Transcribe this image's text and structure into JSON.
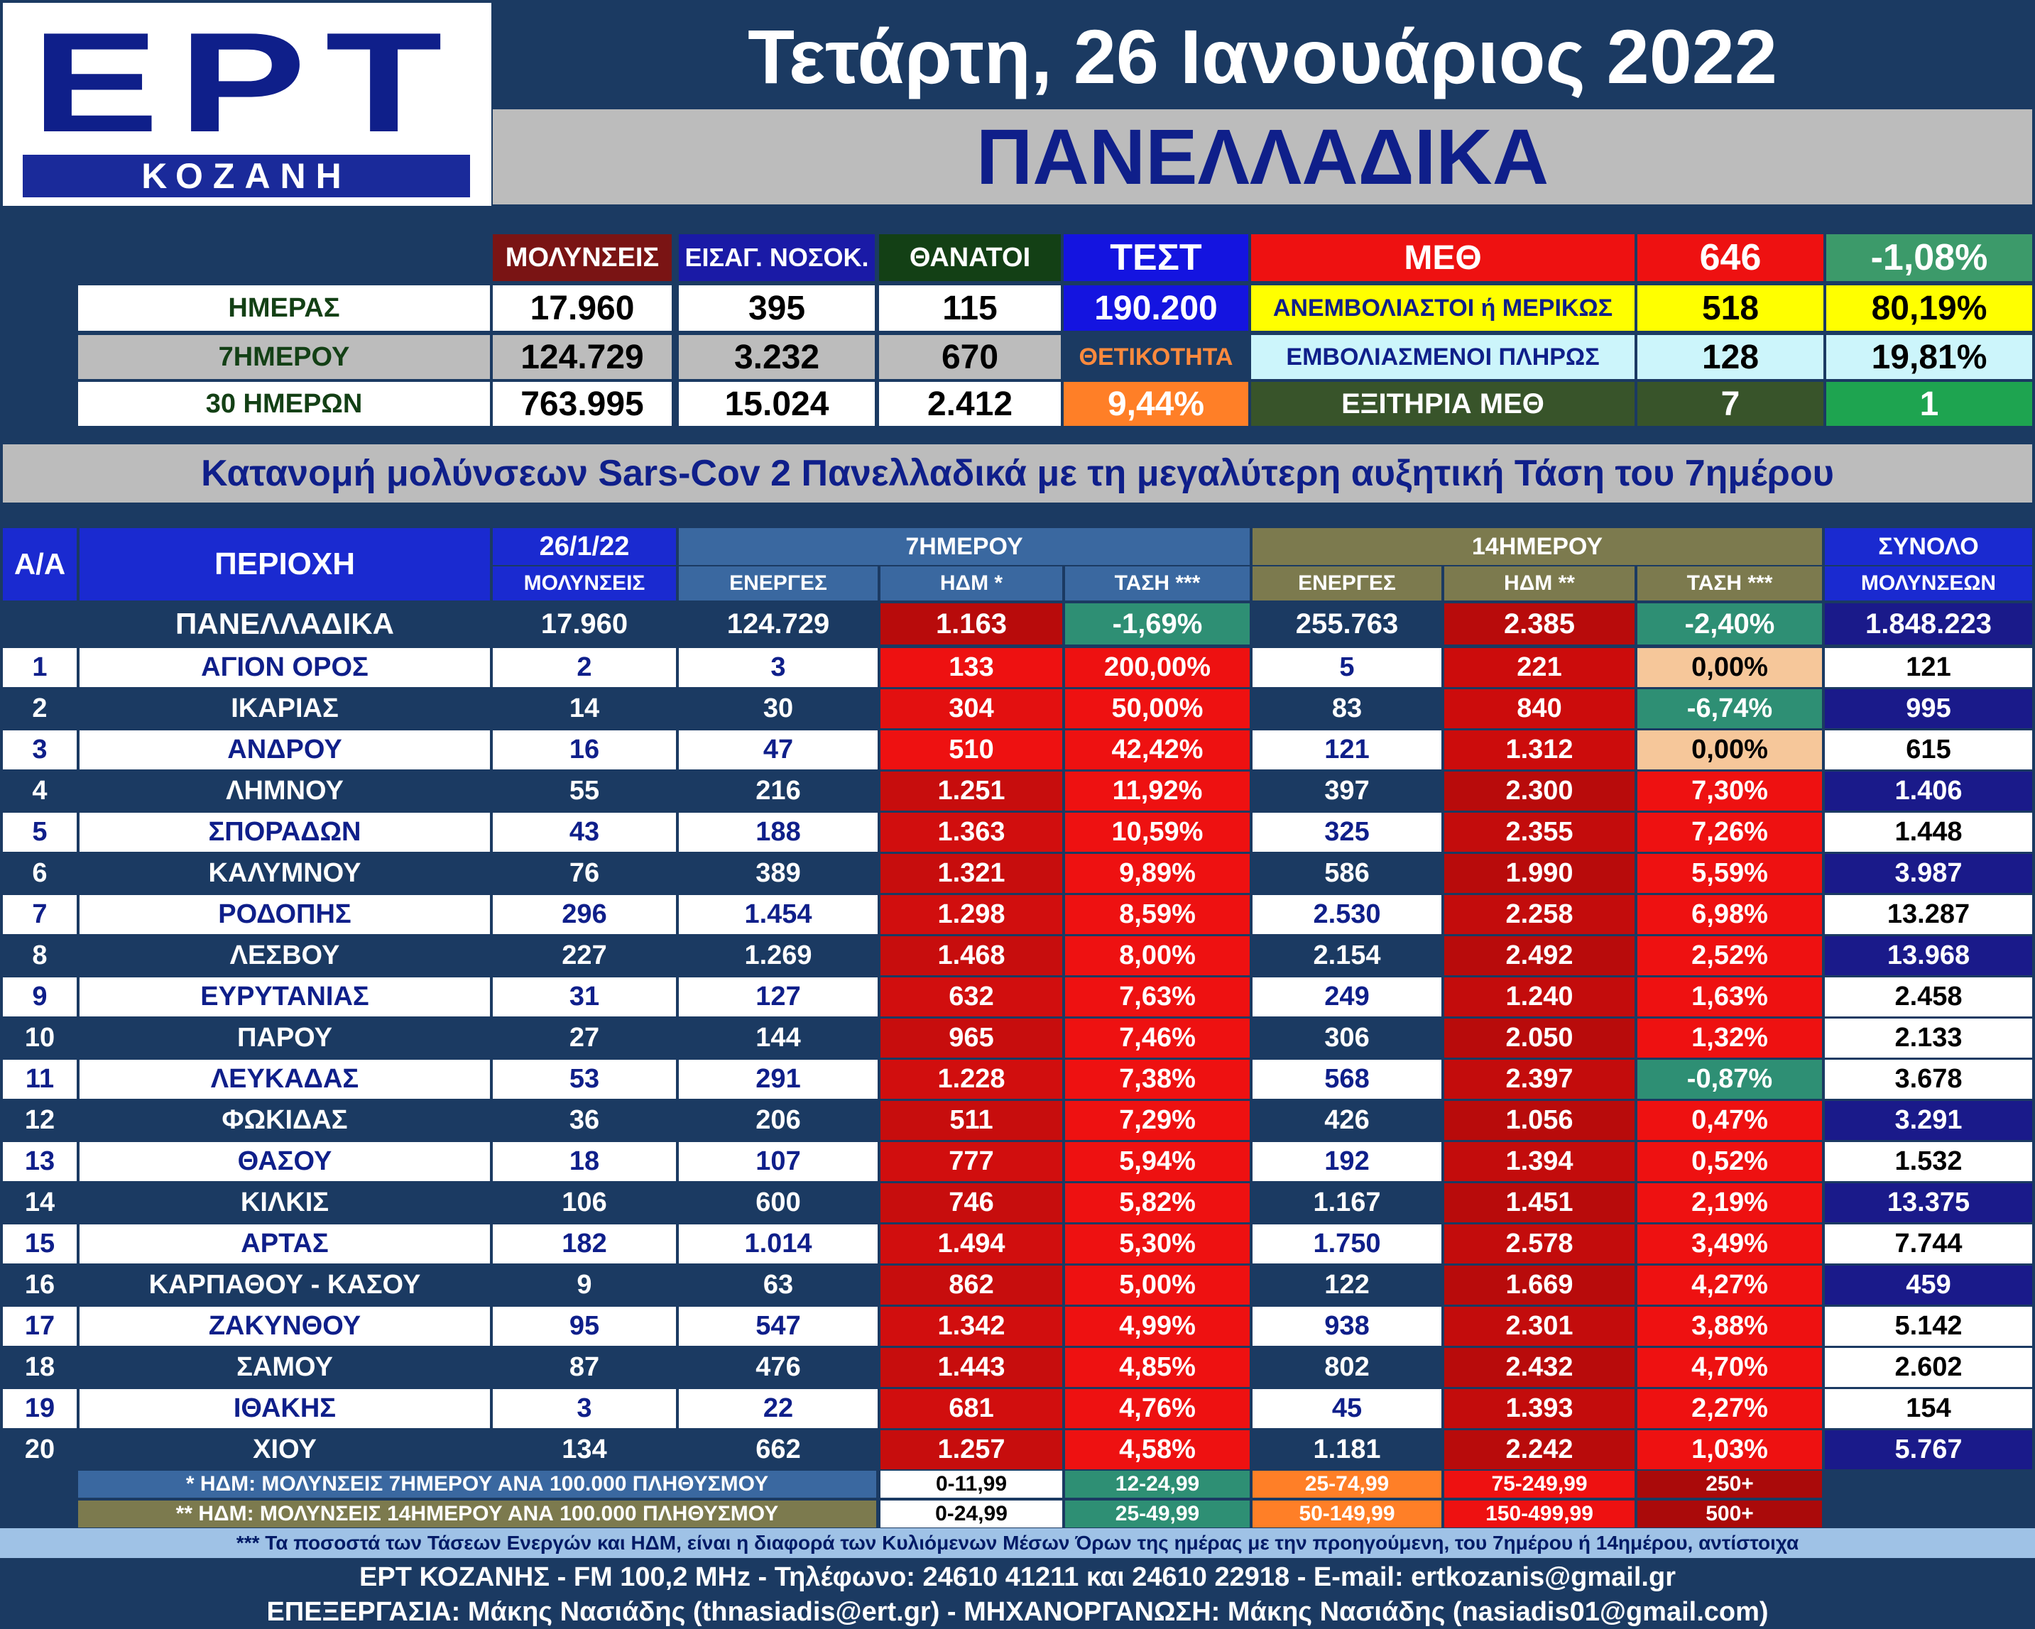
{
  "header": {
    "logo_main": "ΕΡΤ",
    "logo_sub": "ΚΟΖΑΝΗ",
    "date": "Τετάρτη, 26 Ιανουάριος 2022",
    "region": "ΠΑΝΕΛΛΑΔΙΚΑ"
  },
  "summary": {
    "col_headers": [
      "ΜΟΛΥΝΣΕΙΣ",
      "ΕΙΣΑΓ. ΝΟΣΟΚ.",
      "ΘΑΝΑΤΟΙ",
      "ΤΕΣΤ"
    ],
    "rows": [
      {
        "label": "ΗΜΕΡΑΣ",
        "infections": "17.960",
        "admissions": "395",
        "deaths": "115",
        "test": "190.200"
      },
      {
        "label": "7ΗΜΕΡΟΥ",
        "infections": "124.729",
        "admissions": "3.232",
        "deaths": "670",
        "test": "ΘΕΤΙΚΟΤΗΤΑ"
      },
      {
        "label": "30 ΗΜΕΡΩΝ",
        "infections": "763.995",
        "admissions": "15.024",
        "deaths": "2.412",
        "test": "9,44%"
      }
    ],
    "icu": {
      "title": "ΜΕΘ",
      "total": "646",
      "change": "-1,08%",
      "unvaccinated_label": "ΑΝΕΜΒΟΛΙΑΣΤΟΙ ή ΜΕΡΙΚΩΣ",
      "unvaccinated": "518",
      "unvaccinated_pct": "80,19%",
      "vaccinated_label": "ΕΜΒΟΛΙΑΣΜΕΝΟΙ ΠΛΗΡΩΣ",
      "vaccinated": "128",
      "vaccinated_pct": "19,81%",
      "discharged_label": "ΕΞΙΤΗΡΙΑ ΜΕΘ",
      "discharged": "7",
      "discharged_other": "1"
    }
  },
  "section_title": "Κατανομή μολύνσεων Sars-Cov 2 Πανελλαδικά με τη μεγαλύτερη αυξητική Τάση του 7ημέρου",
  "table": {
    "h_aa": "Α/Α",
    "h_area": "ΠΕΡΙΟΧΗ",
    "h_date": "26/1/22",
    "h_inf": "ΜΟΛΥΝΣΕΙΣ",
    "h_7": "7ΗΜΕΡΟΥ",
    "h_14": "14ΗΜΕΡΟΥ",
    "h_total1": "ΣΥΝΟΛΟ",
    "h_total2": "ΜΟΛΥΝΣΕΩΝ",
    "h_active7": "ΕΝΕΡΓΕΣ",
    "h_hdm7": "ΗΔΜ *",
    "h_trend7": "ΤΑΣΗ ***",
    "h_active14": "ΕΝΕΡΓΕΣ",
    "h_hdm14": "ΗΔΜ **",
    "h_trend14": "ΤΑΣΗ ***",
    "national": {
      "area": "ΠΑΝΕΛΛΑΔΙΚΑ",
      "inf": "17.960",
      "a7": "124.729",
      "h7": "1.163",
      "t7": "-1,69%",
      "a14": "255.763",
      "h14": "2.385",
      "t14": "-2,40%",
      "total": "1.848.223"
    },
    "rows": [
      {
        "n": "1",
        "area": "ΑΓΙΟΝ ΟΡΟΣ",
        "inf": "2",
        "a7": "3",
        "h7": "133",
        "t7": "200,00%",
        "a14": "5",
        "h14": "221",
        "t14": "0,00%",
        "total": "121",
        "h7c": "#ee1111",
        "t7c": "#ee1111",
        "h14c": "#cc0c0c",
        "t14c": "#f6c79a",
        "totc": "#ffffff"
      },
      {
        "n": "2",
        "area": "ΙΚΑΡΙΑΣ",
        "inf": "14",
        "a7": "30",
        "h7": "304",
        "t7": "50,00%",
        "a14": "83",
        "h14": "840",
        "t14": "-6,74%",
        "total": "995",
        "h7c": "#e31010",
        "t7c": "#ee1111",
        "h14c": "#cc0c0c",
        "t14c": "#2e8f74",
        "totc": "#1a1a8a"
      },
      {
        "n": "3",
        "area": "ΑΝΔΡΟΥ",
        "inf": "16",
        "a7": "47",
        "h7": "510",
        "t7": "42,42%",
        "a14": "121",
        "h14": "1.312",
        "t14": "0,00%",
        "total": "615",
        "h7c": "#ee1111",
        "t7c": "#ee1111",
        "h14c": "#cc0c0c",
        "t14c": "#f6c79a",
        "totc": "#ffffff"
      },
      {
        "n": "4",
        "area": "ΛΗΜΝΟΥ",
        "inf": "55",
        "a7": "216",
        "h7": "1.251",
        "t7": "11,92%",
        "a14": "397",
        "h14": "2.300",
        "t14": "7,30%",
        "total": "1.406",
        "h7c": "#c70d0d",
        "t7c": "#ee1111",
        "h14c": "#b80b0b",
        "t14c": "#ee1111",
        "totc": "#1a1a8a"
      },
      {
        "n": "5",
        "area": "ΣΠΟΡΑΔΩΝ",
        "inf": "43",
        "a7": "188",
        "h7": "1.363",
        "t7": "10,59%",
        "a14": "325",
        "h14": "2.355",
        "t14": "7,26%",
        "total": "1.448",
        "h7c": "#d10e0e",
        "t7c": "#ee1111",
        "h14c": "#c30c0c",
        "t14c": "#ee1111",
        "totc": "#ffffff"
      },
      {
        "n": "6",
        "area": "ΚΑΛΥΜΝΟΥ",
        "inf": "76",
        "a7": "389",
        "h7": "1.321",
        "t7": "9,89%",
        "a14": "586",
        "h14": "1.990",
        "t14": "5,59%",
        "total": "3.987",
        "h7c": "#c70d0d",
        "t7c": "#ee1111",
        "h14c": "#b80b0b",
        "t14c": "#ee1111",
        "totc": "#1a1a8a"
      },
      {
        "n": "7",
        "area": "ΡΟΔΟΠΗΣ",
        "inf": "296",
        "a7": "1.454",
        "h7": "1.298",
        "t7": "8,59%",
        "a14": "2.530",
        "h14": "2.258",
        "t14": "6,98%",
        "total": "13.287",
        "h7c": "#d10e0e",
        "t7c": "#ee1111",
        "h14c": "#c30c0c",
        "t14c": "#ee1111",
        "totc": "#ffffff"
      },
      {
        "n": "8",
        "area": "ΛΕΣΒΟΥ",
        "inf": "227",
        "a7": "1.269",
        "h7": "1.468",
        "t7": "8,00%",
        "a14": "2.154",
        "h14": "2.492",
        "t14": "2,52%",
        "total": "13.968",
        "h7c": "#c70d0d",
        "t7c": "#ee1111",
        "h14c": "#b80b0b",
        "t14c": "#ee1111",
        "totc": "#1a1a8a"
      },
      {
        "n": "9",
        "area": "ΕΥΡΥΤΑΝΙΑΣ",
        "inf": "31",
        "a7": "127",
        "h7": "632",
        "t7": "7,63%",
        "a14": "249",
        "h14": "1.240",
        "t14": "1,63%",
        "total": "2.458",
        "h7c": "#d10e0e",
        "t7c": "#ee1111",
        "h14c": "#c30c0c",
        "t14c": "#ee1111",
        "totc": "#ffffff"
      },
      {
        "n": "10",
        "area": "ΠΑΡΟΥ",
        "inf": "27",
        "a7": "144",
        "h7": "965",
        "t7": "7,46%",
        "a14": "306",
        "h14": "2.050",
        "t14": "1,32%",
        "total": "2.133",
        "h7c": "#c70d0d",
        "t7c": "#ee1111",
        "h14c": "#b80b0b",
        "t14c": "#ee1111",
        "totc": "#ffffff"
      },
      {
        "n": "11",
        "area": "ΛΕΥΚΑΔΑΣ",
        "inf": "53",
        "a7": "291",
        "h7": "1.228",
        "t7": "7,38%",
        "a14": "568",
        "h14": "2.397",
        "t14": "-0,87%",
        "total": "3.678",
        "h7c": "#d10e0e",
        "t7c": "#ee1111",
        "h14c": "#c30c0c",
        "t14c": "#2e8f74",
        "totc": "#ffffff"
      },
      {
        "n": "12",
        "area": "ΦΩΚΙΔΑΣ",
        "inf": "36",
        "a7": "206",
        "h7": "511",
        "t7": "7,29%",
        "a14": "426",
        "h14": "1.056",
        "t14": "0,47%",
        "total": "3.291",
        "h7c": "#c70d0d",
        "t7c": "#ee1111",
        "h14c": "#b80b0b",
        "t14c": "#ee1111",
        "totc": "#1a1a8a"
      },
      {
        "n": "13",
        "area": "ΘΑΣΟΥ",
        "inf": "18",
        "a7": "107",
        "h7": "777",
        "t7": "5,94%",
        "a14": "192",
        "h14": "1.394",
        "t14": "0,52%",
        "total": "1.532",
        "h7c": "#d10e0e",
        "t7c": "#ee1111",
        "h14c": "#c30c0c",
        "t14c": "#ee1111",
        "totc": "#ffffff"
      },
      {
        "n": "14",
        "area": "ΚΙΛΚΙΣ",
        "inf": "106",
        "a7": "600",
        "h7": "746",
        "t7": "5,82%",
        "a14": "1.167",
        "h14": "1.451",
        "t14": "2,19%",
        "total": "13.375",
        "h7c": "#c70d0d",
        "t7c": "#ee1111",
        "h14c": "#b80b0b",
        "t14c": "#ee1111",
        "totc": "#1a1a8a"
      },
      {
        "n": "15",
        "area": "ΑΡΤΑΣ",
        "inf": "182",
        "a7": "1.014",
        "h7": "1.494",
        "t7": "5,30%",
        "a14": "1.750",
        "h14": "2.578",
        "t14": "3,49%",
        "total": "7.744",
        "h7c": "#d10e0e",
        "t7c": "#ee1111",
        "h14c": "#c30c0c",
        "t14c": "#ee1111",
        "totc": "#ffffff"
      },
      {
        "n": "16",
        "area": "ΚΑΡΠΑΘΟΥ - ΚΑΣΟΥ",
        "inf": "9",
        "a7": "63",
        "h7": "862",
        "t7": "5,00%",
        "a14": "122",
        "h14": "1.669",
        "t14": "4,27%",
        "total": "459",
        "h7c": "#c70d0d",
        "t7c": "#ee1111",
        "h14c": "#b80b0b",
        "t14c": "#ee1111",
        "totc": "#1a1a8a"
      },
      {
        "n": "17",
        "area": "ΖΑΚΥΝΘΟΥ",
        "inf": "95",
        "a7": "547",
        "h7": "1.342",
        "t7": "4,99%",
        "a14": "938",
        "h14": "2.301",
        "t14": "3,88%",
        "total": "5.142",
        "h7c": "#d10e0e",
        "t7c": "#ee1111",
        "h14c": "#c30c0c",
        "t14c": "#ee1111",
        "totc": "#ffffff"
      },
      {
        "n": "18",
        "area": "ΣΑΜΟΥ",
        "inf": "87",
        "a7": "476",
        "h7": "1.443",
        "t7": "4,85%",
        "a14": "802",
        "h14": "2.432",
        "t14": "4,70%",
        "total": "2.602",
        "h7c": "#c70d0d",
        "t7c": "#ee1111",
        "h14c": "#b80b0b",
        "t14c": "#ee1111",
        "totc": "#ffffff"
      },
      {
        "n": "19",
        "area": "ΙΘΑΚΗΣ",
        "inf": "3",
        "a7": "22",
        "h7": "681",
        "t7": "4,76%",
        "a14": "45",
        "h14": "1.393",
        "t14": "2,27%",
        "total": "154",
        "h7c": "#d10e0e",
        "t7c": "#ee1111",
        "h14c": "#c30c0c",
        "t14c": "#ee1111",
        "totc": "#ffffff"
      },
      {
        "n": "20",
        "area": "ΧΙΟΥ",
        "inf": "134",
        "a7": "662",
        "h7": "1.257",
        "t7": "4,58%",
        "a14": "1.181",
        "h14": "2.242",
        "t14": "1,03%",
        "total": "5.767",
        "h7c": "#c70d0d",
        "t7c": "#ee1111",
        "h14c": "#b80b0b",
        "t14c": "#ee1111",
        "totc": "#1a1a8a"
      }
    ]
  },
  "legend": {
    "row1_label": "* ΗΔΜ: ΜΟΛΥΝΣΕΙΣ 7ΗΜΕΡΟΥ ΑΝΑ 100.000 ΠΛΗΘΥΣΜΟΥ",
    "row1_ranges": [
      "0-11,99",
      "12-24,99",
      "25-74,99",
      "75-249,99",
      "250+"
    ],
    "row2_label": "** ΗΔΜ: ΜΟΛΥΝΣΕΙΣ 14ΗΜΕΡΟΥ ΑΝΑ 100.000 ΠΛΗΘΥΣΜΟΥ",
    "row2_ranges": [
      "0-24,99",
      "25-49,99",
      "50-149,99",
      "150-499,99",
      "500+"
    ],
    "colors": [
      "#ffffff",
      "#2e8f74",
      "#ff7f27",
      "#ee1111",
      "#aa0a0a"
    ]
  },
  "footer": {
    "note": "*** Τα ποσοστά των Τάσεων Ενεργών και ΗΔΜ, είναι η διαφορά των Κυλιόμενων Μέσων Όρων της ημέρας με την προηγούμενη, του 7ημέρου ή 14ημέρου, αντίστοιχα",
    "line1": "ΕΡΤ ΚΟΖΑΝΗΣ - FM 100,2 MHz - Τηλέφωνο:  24610 41211 και 24610 22918 - E-mail: ertkozanis@gmail.gr",
    "line2": "ΕΠΕΞΕΡΓΑΣΙΑ: Μάκης Νασιάδης (thnasiadis@ert.gr) - ΜΗΧΑΝΟΡΓΑΝΩΣΗ: Μάκης Νασιάδης (nasiadis01@gmail.com)"
  },
  "colors": {
    "navy": "#1b3a62",
    "logo_blue": "#0f1f8a",
    "red": "#ee1111",
    "dark_red": "#b80b0b",
    "teal": "#2e8f74",
    "yellow": "#ffff00",
    "light_cyan": "#ccf5fb",
    "olive": "#7c7a4e",
    "steel_blue": "#3a68a0"
  }
}
